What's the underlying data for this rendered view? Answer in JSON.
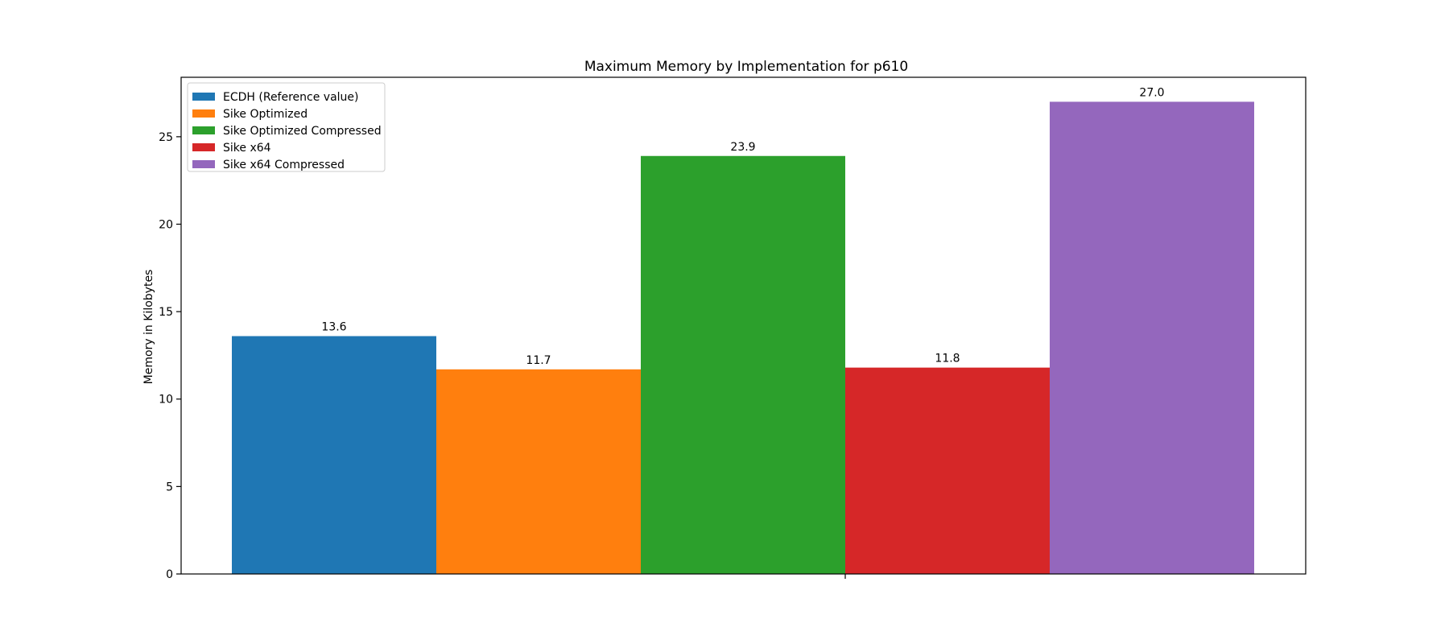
{
  "chart_data": {
    "type": "bar",
    "title": "Maximum Memory by Implementation for p610",
    "xlabel": "",
    "ylabel": "Memory in Kilobytes",
    "ylim": [
      0,
      28.4
    ],
    "yticks": [
      0,
      5,
      10,
      15,
      20,
      25
    ],
    "ytick_labels": [
      "0",
      "5",
      "10",
      "15",
      "20",
      "25"
    ],
    "grid": false,
    "legend_position": "top-left",
    "series": [
      {
        "name": "ECDH (Reference value)",
        "value": 13.6,
        "label": "13.6",
        "color": "#1f77b4"
      },
      {
        "name": "Sike Optimized",
        "value": 11.7,
        "label": "11.7",
        "color": "#ff7f0e"
      },
      {
        "name": "Sike Optimized Compressed",
        "value": 23.9,
        "label": "23.9",
        "color": "#2ca02c"
      },
      {
        "name": "Sike x64",
        "value": 11.8,
        "label": "11.8",
        "color": "#d62728"
      },
      {
        "name": "Sike x64 Compressed",
        "value": 27.0,
        "label": "27.0",
        "color": "#9467bd"
      }
    ]
  }
}
